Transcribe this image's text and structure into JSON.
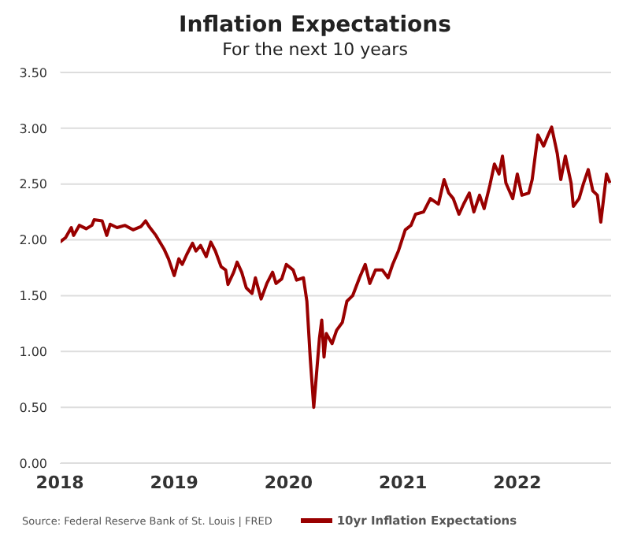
{
  "chart_data": {
    "type": "line",
    "title": "Inflation Expectations",
    "subtitle": "For the next 10 years",
    "annotations": [
      "Source: Federal Reserve Bank of St. Louis | FRED"
    ],
    "x": [
      2018.0,
      2018.05,
      2018.1,
      2018.12,
      2018.17,
      2018.23,
      2018.28,
      2018.3,
      2018.37,
      2018.41,
      2018.44,
      2018.5,
      2018.57,
      2018.64,
      2018.71,
      2018.75,
      2018.78,
      2018.84,
      2018.91,
      2018.95,
      2019.0,
      2019.04,
      2019.07,
      2019.11,
      2019.16,
      2019.19,
      2019.23,
      2019.28,
      2019.32,
      2019.36,
      2019.41,
      2019.45,
      2019.47,
      2019.52,
      2019.55,
      2019.59,
      2019.63,
      2019.68,
      2019.71,
      2019.76,
      2019.81,
      2019.86,
      2019.89,
      2019.94,
      2019.98,
      2020.04,
      2020.07,
      2020.13,
      2020.16,
      2020.19,
      2020.22,
      2020.27,
      2020.29,
      2020.31,
      2020.33,
      2020.38,
      2020.42,
      2020.47,
      2020.51,
      2020.56,
      2020.62,
      2020.67,
      2020.71,
      2020.76,
      2020.82,
      2020.87,
      2020.91,
      2020.96,
      2021.02,
      2021.07,
      2021.11,
      2021.18,
      2021.24,
      2021.31,
      2021.36,
      2021.4,
      2021.44,
      2021.49,
      2021.53,
      2021.58,
      2021.62,
      2021.67,
      2021.71,
      2021.76,
      2021.8,
      2021.84,
      2021.87,
      2021.9,
      2021.93,
      2021.96,
      2022.0,
      2022.04,
      2022.1,
      2022.13,
      2022.18,
      2022.23,
      2022.27,
      2022.3,
      2022.35,
      2022.38,
      2022.42,
      2022.47,
      2022.49,
      2022.54,
      2022.58,
      2022.62,
      2022.66,
      2022.7,
      2022.73,
      2022.78,
      2022.81
    ],
    "series": [
      {
        "name": "10yr Inflation Expectations",
        "color": "#990000",
        "values": [
          1.98,
          2.02,
          2.11,
          2.04,
          2.13,
          2.1,
          2.13,
          2.18,
          2.17,
          2.04,
          2.14,
          2.11,
          2.13,
          2.09,
          2.12,
          2.17,
          2.12,
          2.04,
          1.92,
          1.83,
          1.68,
          1.83,
          1.78,
          1.87,
          1.97,
          1.9,
          1.95,
          1.85,
          1.98,
          1.9,
          1.76,
          1.73,
          1.6,
          1.71,
          1.8,
          1.71,
          1.57,
          1.52,
          1.66,
          1.47,
          1.61,
          1.71,
          1.61,
          1.65,
          1.78,
          1.73,
          1.64,
          1.66,
          1.45,
          0.93,
          0.5,
          1.12,
          1.28,
          0.95,
          1.16,
          1.07,
          1.19,
          1.26,
          1.45,
          1.5,
          1.66,
          1.78,
          1.61,
          1.73,
          1.73,
          1.66,
          1.78,
          1.9,
          2.09,
          2.13,
          2.23,
          2.25,
          2.37,
          2.32,
          2.54,
          2.42,
          2.37,
          2.23,
          2.32,
          2.42,
          2.25,
          2.4,
          2.28,
          2.49,
          2.68,
          2.59,
          2.75,
          2.51,
          2.44,
          2.37,
          2.59,
          2.4,
          2.42,
          2.54,
          2.94,
          2.84,
          2.94,
          3.01,
          2.77,
          2.54,
          2.75,
          2.51,
          2.3,
          2.37,
          2.51,
          2.63,
          2.44,
          2.4,
          2.16,
          2.59,
          2.51
        ]
      }
    ],
    "xlim": [
      2018,
      2022.82
    ],
    "xticks": [
      2018,
      2019,
      2020,
      2021,
      2022
    ],
    "ylim": [
      0,
      3.5
    ],
    "yticks": [
      {
        "value": 0,
        "label": "0.00"
      },
      {
        "value": 0.5,
        "label": "0.50"
      },
      {
        "value": 1,
        "label": "1.00"
      },
      {
        "value": 1.5,
        "label": "1.50"
      },
      {
        "value": 2,
        "label": "2.00"
      },
      {
        "value": 2.5,
        "label": "2.50"
      },
      {
        "value": 3,
        "label": "3.00"
      },
      {
        "value": 3.5,
        "label": "3.50"
      }
    ],
    "grid": "y",
    "legend": "bottom",
    "marker": "none",
    "line_style": "solid"
  }
}
